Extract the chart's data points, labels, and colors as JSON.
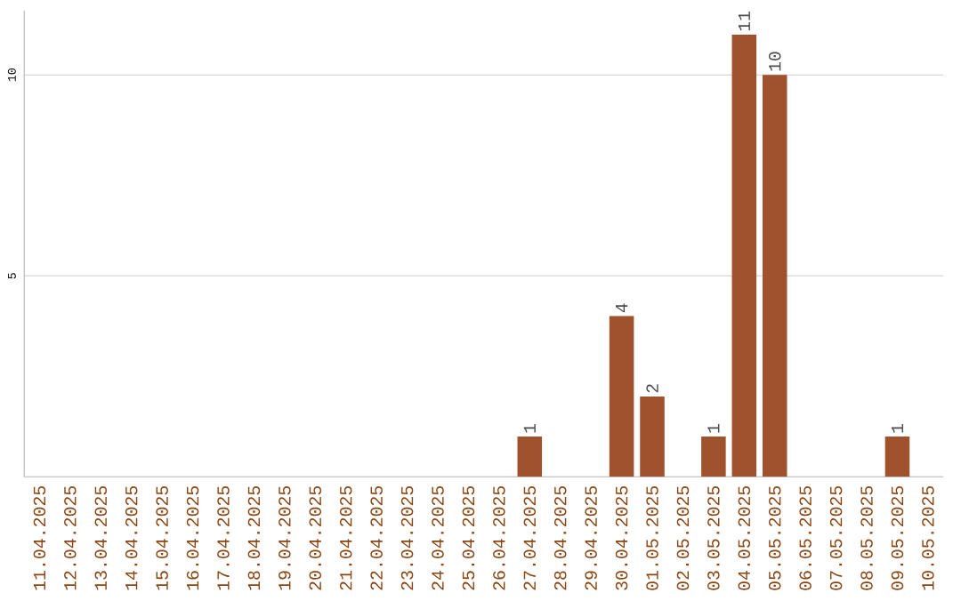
{
  "chart_data": {
    "type": "bar",
    "categories": [
      "11.04.2025",
      "12.04.2025",
      "13.04.2025",
      "14.04.2025",
      "15.04.2025",
      "16.04.2025",
      "17.04.2025",
      "18.04.2025",
      "19.04.2025",
      "20.04.2025",
      "21.04.2025",
      "22.04.2025",
      "23.04.2025",
      "24.04.2025",
      "25.04.2025",
      "26.04.2025",
      "27.04.2025",
      "28.04.2025",
      "29.04.2025",
      "30.04.2025",
      "01.05.2025",
      "02.05.2025",
      "03.05.2025",
      "04.05.2025",
      "05.05.2025",
      "06.05.2025",
      "07.05.2025",
      "08.05.2025",
      "09.05.2025",
      "10.05.2025"
    ],
    "values": [
      0,
      0,
      0,
      0,
      0,
      0,
      0,
      0,
      0,
      0,
      0,
      0,
      0,
      0,
      0,
      0,
      1,
      0,
      0,
      4,
      2,
      0,
      1,
      11,
      10,
      0,
      0,
      0,
      1,
      0
    ],
    "value_labels": [
      null,
      null,
      null,
      null,
      null,
      null,
      null,
      null,
      null,
      null,
      null,
      null,
      null,
      null,
      null,
      null,
      "1",
      null,
      null,
      "4",
      "2",
      null,
      "1",
      "11",
      "10",
      null,
      null,
      null,
      "1",
      null
    ],
    "color": "#a0522d",
    "ylim": [
      0,
      11.6
    ],
    "yticks": [
      5,
      10
    ],
    "grid": "y"
  }
}
